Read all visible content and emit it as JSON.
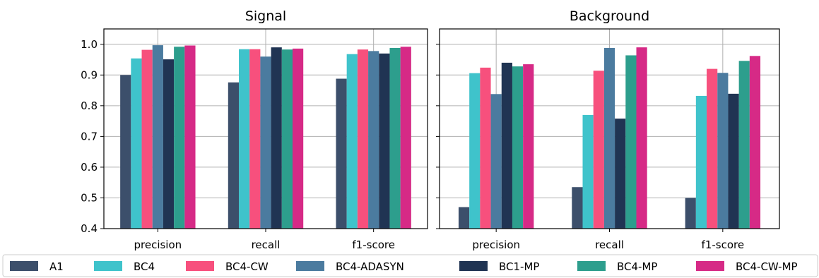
{
  "chart_data": [
    {
      "type": "bar",
      "title": "Signal",
      "categories": [
        "precision",
        "recall",
        "f1-score"
      ],
      "ylim": [
        0.4,
        1.05
      ],
      "yticks": [
        "0.4",
        "0.5",
        "0.6",
        "0.7",
        "0.8",
        "0.9",
        "1.0"
      ],
      "grid": true,
      "series": [
        {
          "name": "A1",
          "values": [
            0.9,
            0.876,
            0.888
          ]
        },
        {
          "name": "BC4",
          "values": [
            0.954,
            0.984,
            0.968
          ]
        },
        {
          "name": "BC4-CW",
          "values": [
            0.982,
            0.984,
            0.983
          ]
        },
        {
          "name": "BC4-ADASYN",
          "values": [
            0.997,
            0.96,
            0.978
          ]
        },
        {
          "name": "BC1-MP",
          "values": [
            0.951,
            0.99,
            0.97
          ]
        },
        {
          "name": "BC4-MP",
          "values": [
            0.992,
            0.983,
            0.988
          ]
        },
        {
          "name": "BC4-CW-MP",
          "values": [
            0.996,
            0.986,
            0.992
          ]
        }
      ]
    },
    {
      "type": "bar",
      "title": "Background",
      "categories": [
        "precision",
        "recall",
        "f1-score"
      ],
      "ylim": [
        0.4,
        1.05
      ],
      "yticks": [
        "0.4",
        "0.5",
        "0.6",
        "0.7",
        "0.8",
        "0.9",
        "1.0"
      ],
      "grid": true,
      "series": [
        {
          "name": "A1",
          "values": [
            0.47,
            0.535,
            0.5
          ]
        },
        {
          "name": "BC4",
          "values": [
            0.906,
            0.77,
            0.832
          ]
        },
        {
          "name": "BC4-CW",
          "values": [
            0.924,
            0.914,
            0.92
          ]
        },
        {
          "name": "BC4-ADASYN",
          "values": [
            0.838,
            0.988,
            0.907
          ]
        },
        {
          "name": "BC1-MP",
          "values": [
            0.94,
            0.758,
            0.839
          ]
        },
        {
          "name": "BC4-MP",
          "values": [
            0.928,
            0.964,
            0.946
          ]
        },
        {
          "name": "BC4-CW-MP",
          "values": [
            0.935,
            0.99,
            0.962
          ]
        }
      ]
    }
  ],
  "legend": {
    "placement": "bottom",
    "entries": [
      "A1",
      "BC4",
      "BC4-CW",
      "BC4-ADASYN",
      "BC1-MP",
      "BC4-MP",
      "BC4-CW-MP"
    ]
  },
  "colors": [
    "#3c4f6b",
    "#3fc3cb",
    "#f7507d",
    "#4b7b9f",
    "#203453",
    "#2d9e8d",
    "#d62a86"
  ]
}
